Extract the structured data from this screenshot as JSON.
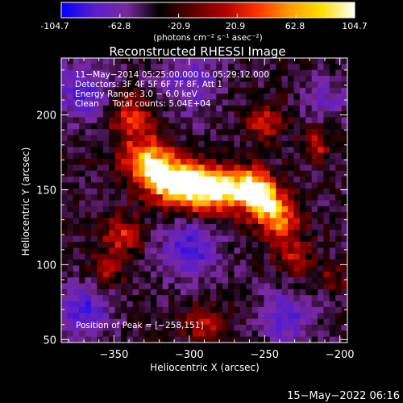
{
  "colorbar": {
    "ticks": [
      "-104.7",
      "-62.8",
      "-20.9",
      "20.9",
      "62.8",
      "104.7"
    ],
    "units": "(photons cm⁻² s⁻¹ asec⁻²)",
    "range": [
      -104.7,
      104.7
    ],
    "colormap": [
      "#0000ff",
      "#5a1ccc",
      "#7a2aa0",
      "#000000",
      "#5a0000",
      "#b00000",
      "#ff3000",
      "#ff9a00",
      "#ffe000",
      "#ffffff"
    ]
  },
  "chart_data": {
    "type": "heatmap",
    "title": "Reconstructed RHESSI Image",
    "xlabel": "Heliocentric X (arcsec)",
    "ylabel": "Heliocentric Y (arcsec)",
    "xlim": [
      -385,
      -195
    ],
    "ylim": [
      48,
      238
    ],
    "xticks": [
      {
        "value": -350,
        "label": "−350"
      },
      {
        "value": -300,
        "label": "−300"
      },
      {
        "value": -250,
        "label": "−250"
      },
      {
        "value": -200,
        "label": "−200"
      }
    ],
    "yticks": [
      {
        "value": 50,
        "label": "50"
      },
      {
        "value": 100,
        "label": "100"
      },
      {
        "value": 150,
        "label": "150"
      },
      {
        "value": 200,
        "label": "200"
      }
    ],
    "annotations": [
      "11−May−2014 05:25:00.000 to 05:29:12.000",
      "Detectors: 3F 4F 5F 6F 7F 8F, Att 1",
      "Energy Range: 3.0 − 6.0 keV",
      "Clean     Total counts: 5.04E+04"
    ],
    "peak_label": "Position of Peak = [−258,151]",
    "peak": [
      -258,
      151
    ],
    "emission_sources": [
      {
        "x": -340,
        "y": 200,
        "amp": 0.55,
        "sigma": 10
      },
      {
        "x": -330,
        "y": 172,
        "amp": 0.7,
        "sigma": 12
      },
      {
        "x": -318,
        "y": 158,
        "amp": 0.95,
        "sigma": 10
      },
      {
        "x": -300,
        "y": 152,
        "amp": 1.0,
        "sigma": 11
      },
      {
        "x": -280,
        "y": 150,
        "amp": 0.95,
        "sigma": 11
      },
      {
        "x": -258,
        "y": 151,
        "amp": 1.0,
        "sigma": 9
      },
      {
        "x": -248,
        "y": 140,
        "amp": 0.8,
        "sigma": 10
      },
      {
        "x": -238,
        "y": 125,
        "amp": 0.55,
        "sigma": 9
      },
      {
        "x": -230,
        "y": 105,
        "amp": 0.4,
        "sigma": 8
      },
      {
        "x": -345,
        "y": 120,
        "amp": 0.5,
        "sigma": 10
      },
      {
        "x": -355,
        "y": 95,
        "amp": 0.35,
        "sigma": 8
      },
      {
        "x": -290,
        "y": 60,
        "amp": 0.45,
        "sigma": 9
      },
      {
        "x": -250,
        "y": 195,
        "amp": 0.45,
        "sigma": 9
      },
      {
        "x": -215,
        "y": 180,
        "amp": 0.45,
        "sigma": 7
      },
      {
        "x": -205,
        "y": 90,
        "amp": 0.35,
        "sigma": 6
      }
    ],
    "negative_regions": [
      {
        "x": -370,
        "y": 215,
        "amp": 0.5,
        "sigma": 14
      },
      {
        "x": -300,
        "y": 222,
        "amp": 0.45,
        "sigma": 14
      },
      {
        "x": -300,
        "y": 110,
        "amp": 0.6,
        "sigma": 14
      },
      {
        "x": -370,
        "y": 70,
        "amp": 0.6,
        "sigma": 12
      },
      {
        "x": -235,
        "y": 65,
        "amp": 0.55,
        "sigma": 12
      },
      {
        "x": -210,
        "y": 210,
        "amp": 0.35,
        "sigma": 10
      }
    ],
    "grid": false
  },
  "footer": {
    "date_stamp": "15−May−2022 06:16"
  }
}
